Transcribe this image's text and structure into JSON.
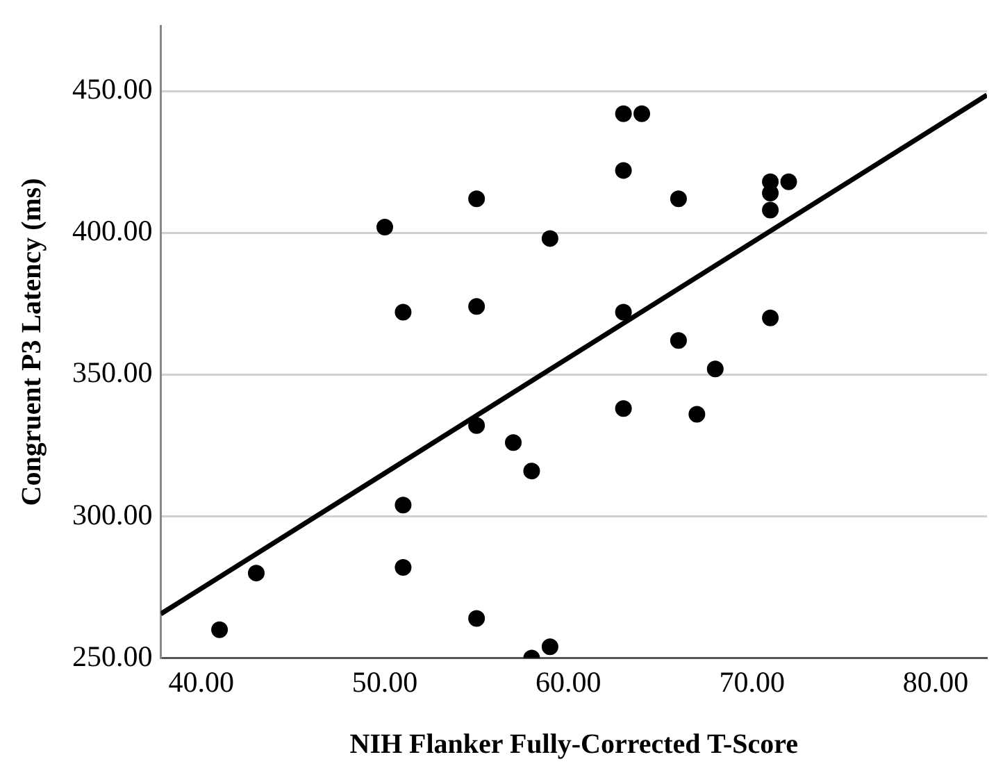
{
  "chart_data": {
    "type": "scatter",
    "xlabel": "NIH Flanker Fully-Corrected T-Score",
    "ylabel": "Congruent P3 Latency (ms)",
    "xlim": [
      37.8,
      82.8
    ],
    "ylim": [
      250,
      473
    ],
    "xticks": [
      {
        "value": 40,
        "label": "40.00"
      },
      {
        "value": 50,
        "label": "50.00"
      },
      {
        "value": 60,
        "label": "60.00"
      },
      {
        "value": 70,
        "label": "70.00"
      },
      {
        "value": 80,
        "label": "80.00"
      }
    ],
    "yticks": [
      {
        "value": 250,
        "label": "250.00"
      },
      {
        "value": 300,
        "label": "300.00"
      },
      {
        "value": 350,
        "label": "350.00"
      },
      {
        "value": 400,
        "label": "400.00"
      },
      {
        "value": 450,
        "label": "450.00"
      }
    ],
    "grid": "y",
    "legend": false,
    "marker": "circle",
    "series": [
      {
        "color": "#000000",
        "x": [
          41,
          43,
          50,
          51,
          51,
          51,
          55,
          55,
          55,
          55,
          57,
          58,
          58,
          59,
          59,
          63,
          64,
          63,
          63,
          63,
          66,
          66,
          67,
          68,
          71,
          71,
          71,
          72,
          71
        ],
        "values": [
          260,
          280,
          402,
          372,
          304,
          282,
          412,
          374,
          332,
          264,
          326,
          316,
          250,
          398,
          254,
          442,
          442,
          422,
          372,
          338,
          412,
          362,
          336,
          352,
          418,
          414,
          408,
          418,
          370
        ]
      },
      {
        "type": "line",
        "marker": "none",
        "color": "#000000",
        "x": [
          37.8,
          82.8
        ],
        "values": [
          265.6,
          448.6
        ]
      }
    ]
  }
}
